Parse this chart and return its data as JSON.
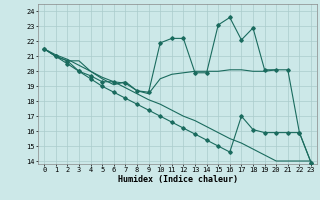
{
  "xlabel": "Humidex (Indice chaleur)",
  "xlim": [
    -0.5,
    23.5
  ],
  "ylim": [
    13.8,
    24.5
  ],
  "yticks": [
    14,
    15,
    16,
    17,
    18,
    19,
    20,
    21,
    22,
    23,
    24
  ],
  "xticks": [
    0,
    1,
    2,
    3,
    4,
    5,
    6,
    7,
    8,
    9,
    10,
    11,
    12,
    13,
    14,
    15,
    16,
    17,
    18,
    19,
    20,
    21,
    22,
    23
  ],
  "bg_color": "#cce8e8",
  "grid_color": "#aacccc",
  "line_color": "#1a6b5e",
  "line1_x": [
    0,
    1,
    2,
    3,
    4,
    5,
    6,
    7,
    8,
    9,
    10,
    11,
    12,
    13,
    14,
    15,
    16,
    17,
    18,
    19,
    20
  ],
  "line1_y": [
    21.5,
    21.0,
    20.7,
    20.7,
    20.0,
    19.5,
    19.1,
    19.3,
    18.7,
    18.5,
    19.5,
    19.8,
    19.9,
    20.0,
    20.0,
    20.0,
    20.1,
    20.1,
    20.0,
    20.0,
    20.1
  ],
  "line2_x": [
    0,
    1,
    2,
    3,
    4,
    5,
    6,
    7,
    8,
    9,
    10,
    11,
    12,
    13,
    14,
    15,
    16,
    17,
    18,
    19,
    20,
    21,
    22,
    23
  ],
  "line2_y": [
    21.5,
    21.0,
    20.7,
    20.0,
    19.7,
    19.3,
    19.3,
    19.2,
    18.7,
    18.6,
    21.9,
    22.2,
    22.2,
    19.9,
    19.9,
    23.1,
    23.6,
    22.1,
    22.9,
    20.1,
    20.1,
    20.1,
    15.9,
    13.9
  ],
  "line3_x": [
    0,
    1,
    2,
    3,
    4,
    5,
    6,
    7,
    8,
    9,
    10,
    11,
    12,
    13,
    14,
    15,
    16,
    17,
    18,
    19,
    20,
    21,
    22,
    23
  ],
  "line3_y": [
    21.5,
    21.0,
    20.5,
    20.0,
    19.5,
    19.0,
    18.6,
    18.2,
    17.8,
    17.4,
    17.0,
    16.6,
    16.2,
    15.8,
    15.4,
    15.0,
    14.6,
    17.0,
    16.1,
    15.9,
    15.9,
    15.9,
    15.9,
    13.9
  ],
  "line4_x": [
    0,
    1,
    2,
    3,
    4,
    5,
    6,
    7,
    8,
    9,
    10,
    11,
    12,
    13,
    14,
    15,
    16,
    17,
    18,
    19,
    20,
    21,
    22,
    23
  ],
  "line4_y": [
    21.5,
    21.1,
    20.8,
    20.4,
    20.0,
    19.6,
    19.3,
    18.9,
    18.5,
    18.1,
    17.8,
    17.4,
    17.0,
    16.7,
    16.3,
    15.9,
    15.5,
    15.2,
    14.8,
    14.4,
    14.0,
    14.0,
    14.0,
    14.0
  ]
}
